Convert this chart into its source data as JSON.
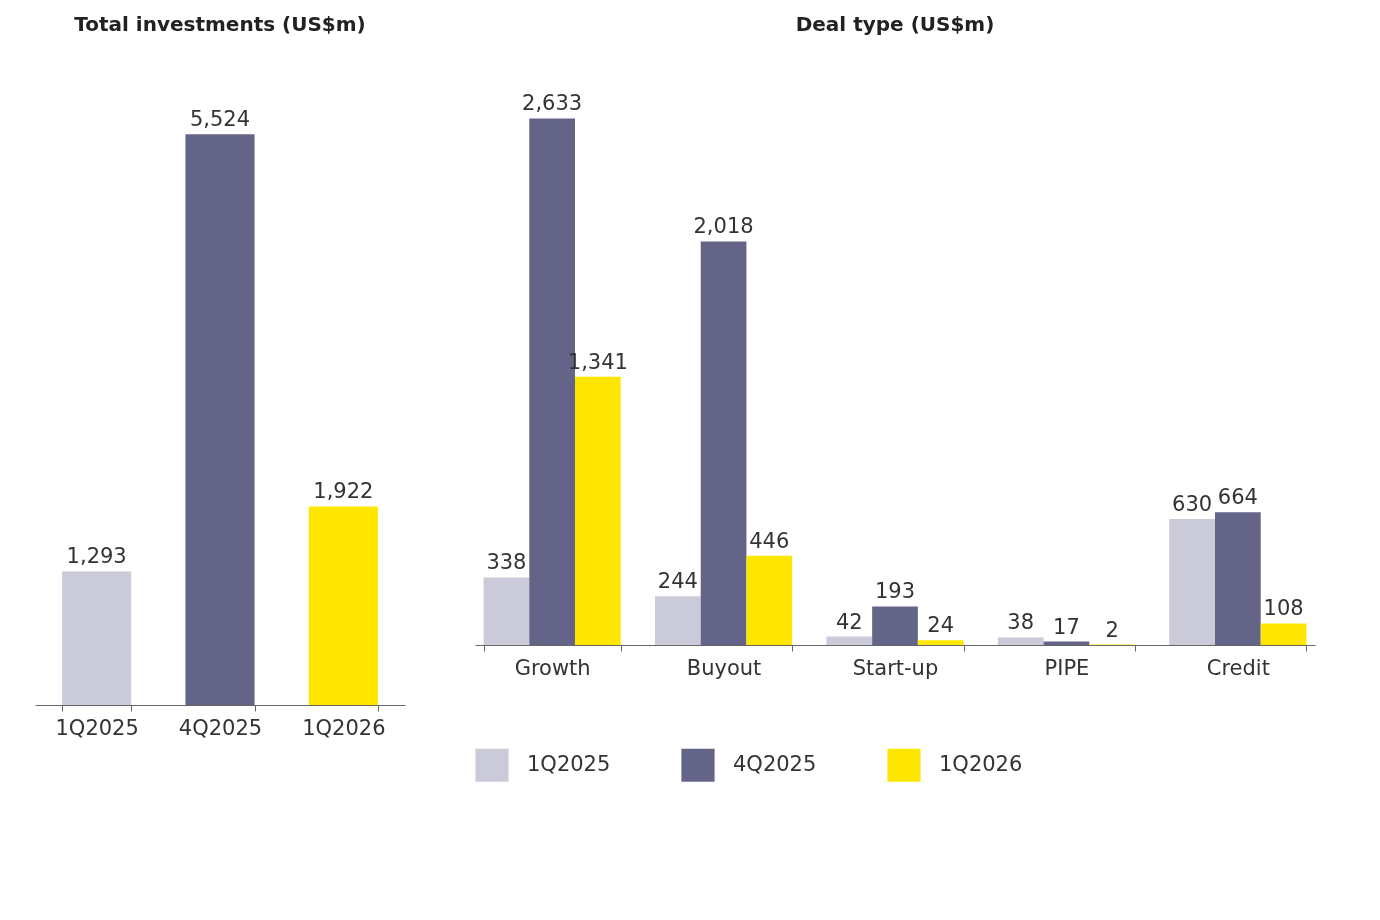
{
  "chart_data": [
    {
      "type": "bar",
      "title": "Total investments (US$m)",
      "categories": [
        "1Q2025",
        "4Q2025",
        "1Q2026"
      ],
      "values": [
        1293,
        5524,
        1922
      ],
      "value_labels": [
        "1,293",
        "5,524",
        "1,922"
      ],
      "colors": [
        "#cbcad8",
        "#636488",
        "#ffe600"
      ]
    },
    {
      "type": "bar",
      "title": "Deal type (US$m)",
      "categories": [
        "Growth",
        "Buyout",
        "Start-up",
        "PIPE",
        "Credit"
      ],
      "series": [
        {
          "name": "1Q2025",
          "color": "#cbcad8",
          "values": [
            338,
            244,
            42,
            38,
            630
          ],
          "value_labels": [
            "338",
            "244",
            "42",
            "38",
            "630"
          ]
        },
        {
          "name": "4Q2025",
          "color": "#636488",
          "values": [
            2633,
            2018,
            193,
            17,
            664
          ],
          "value_labels": [
            "2,633",
            "2,018",
            "193",
            "17",
            "664"
          ]
        },
        {
          "name": "1Q2026",
          "color": "#ffe600",
          "values": [
            1341,
            446,
            24,
            2,
            108
          ],
          "value_labels": [
            "1,341",
            "446",
            "24",
            "2",
            "108"
          ]
        }
      ],
      "legend": "bottom"
    }
  ]
}
